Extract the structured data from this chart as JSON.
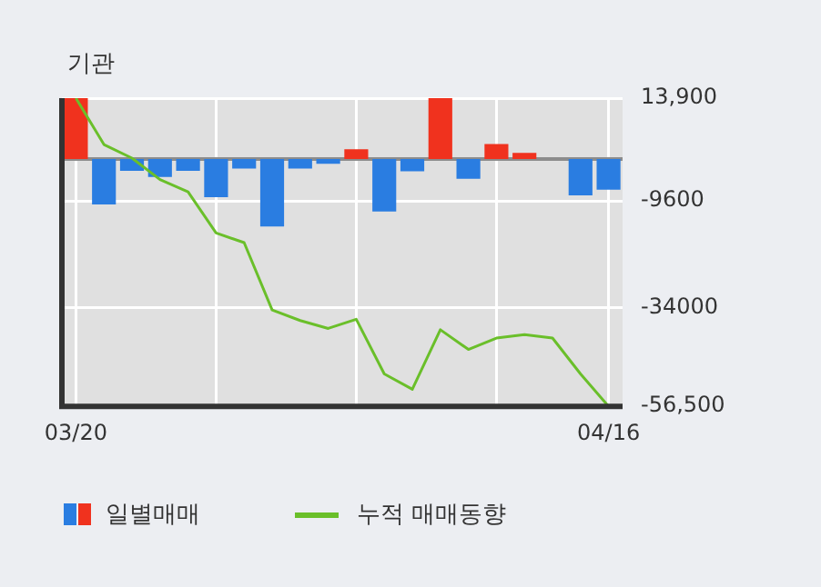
{
  "chart_data": {
    "type": "bar",
    "title": "기관",
    "categories": [
      "03/20",
      null,
      null,
      null,
      null,
      null,
      null,
      null,
      null,
      null,
      null,
      null,
      null,
      null,
      null,
      null,
      null,
      null,
      null,
      "04/16"
    ],
    "series": [
      {
        "name": "일별매매",
        "colors": [
          "#f0321e",
          "#2a7de1",
          "#2a7de1",
          "#2a7de1",
          "#2a7de1",
          "#2a7de1",
          "#2a7de1",
          "#2a7de1",
          "#2a7de1",
          "#2a7de1",
          "#f0321e",
          "#2a7de1",
          "#2a7de1",
          "#f0321e",
          "#2a7de1",
          "#f0321e",
          "#f0321e",
          "#2a7de1",
          "#2a7de1",
          "#2a7de1"
        ],
        "values": [
          13900,
          -10400,
          -2700,
          -4100,
          -2700,
          -8700,
          -2200,
          -15400,
          -2200,
          -1100,
          2200,
          -12000,
          -2800,
          13900,
          -4500,
          3400,
          1400,
          0,
          -8300,
          -7000
        ]
      },
      {
        "name": "누적 매매동향",
        "type": "line",
        "color": "#6abf2a",
        "values": [
          13900,
          3300,
          200,
          -4700,
          -7500,
          -16900,
          -19100,
          -34500,
          -36900,
          -38700,
          -36600,
          -49100,
          -52600,
          -39000,
          -43500,
          -40900,
          -40100,
          -40900,
          -49100,
          -56500
        ]
      }
    ],
    "ylim": [
      -56500,
      13900
    ],
    "yticks": [
      {
        "value": 13900,
        "label": "13,900"
      },
      {
        "value": -9600,
        "label": "-9600"
      },
      {
        "value": -34000,
        "label": "-34000"
      },
      {
        "value": -56500,
        "label": "-56,500"
      }
    ],
    "grid": true,
    "legend": "bottom",
    "marker": "none"
  }
}
